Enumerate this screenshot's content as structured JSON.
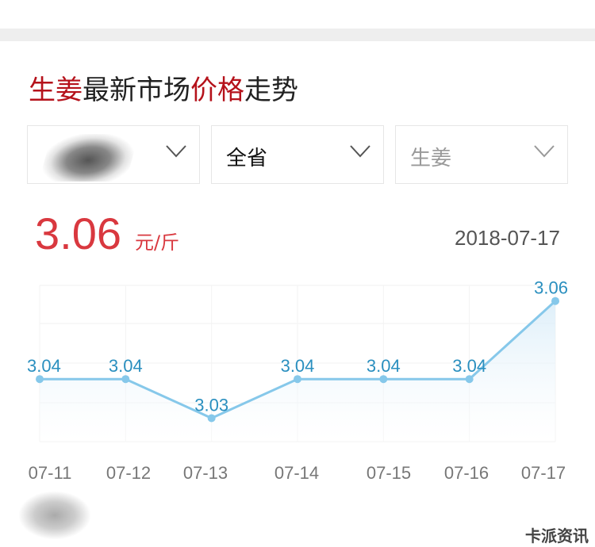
{
  "title": {
    "part1": "生姜",
    "part2": "最新市场",
    "part3": "价格",
    "part4": "走势"
  },
  "filters": [
    {
      "value": ""
    },
    {
      "value": "全省"
    },
    {
      "value": "生姜",
      "placeholder": true
    }
  ],
  "current": {
    "price": "3.06",
    "unit": "元/斤",
    "date": "2018-07-17"
  },
  "watermark": "卡派资讯",
  "colors": {
    "accent": "#d9383f",
    "line": "#86c8ea",
    "label": "#2a8fbf"
  },
  "chart_data": {
    "type": "area",
    "categories": [
      "07-11",
      "07-12",
      "07-13",
      "07-14",
      "07-15",
      "07-16",
      "07-17"
    ],
    "values": [
      3.04,
      3.04,
      3.03,
      3.04,
      3.04,
      3.04,
      3.06
    ],
    "data_labels": [
      "3.04",
      "3.04",
      "3.03",
      "3.04",
      "3.04",
      "3.04",
      "3.06"
    ],
    "ylim": [
      3.024,
      3.064
    ],
    "grid": true,
    "legend": "none"
  }
}
